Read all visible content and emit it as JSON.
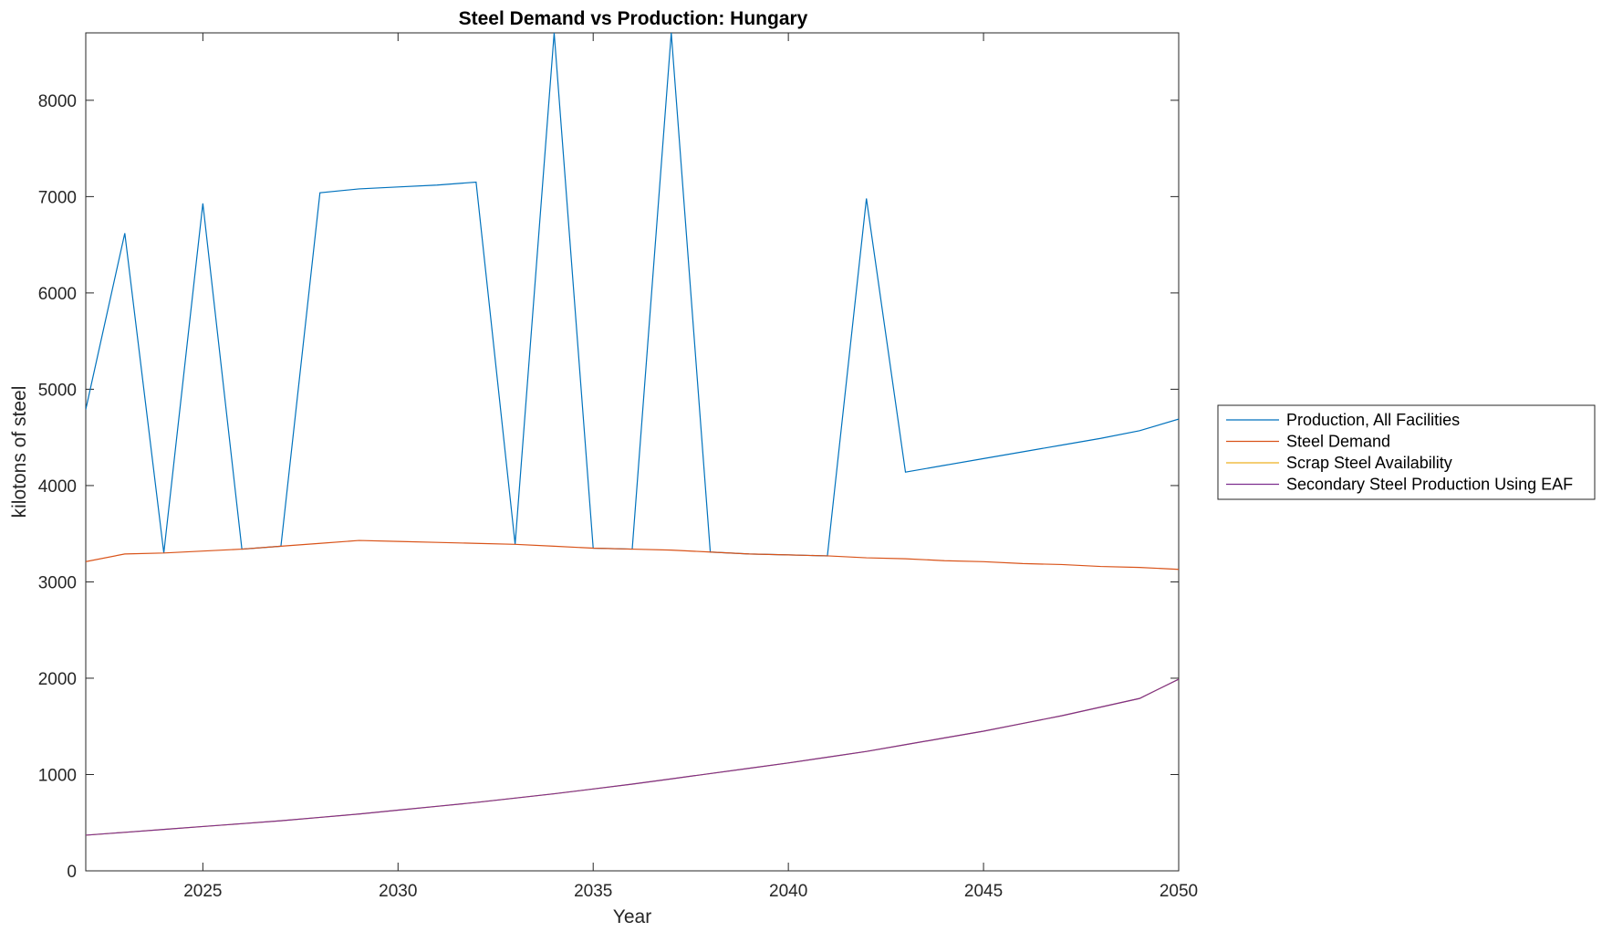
{
  "chart_data": {
    "type": "line",
    "title": "Steel Demand vs Production: Hungary",
    "xlabel": "Year",
    "ylabel": "kilotons of steel",
    "xlim": [
      2022,
      2050
    ],
    "ylim": [
      0,
      8700
    ],
    "xticks": [
      2025,
      2030,
      2035,
      2040,
      2045,
      2050
    ],
    "yticks": [
      0,
      1000,
      2000,
      3000,
      4000,
      5000,
      6000,
      7000,
      8000
    ],
    "grid": false,
    "legend_position": "outside-right",
    "x": [
      2022,
      2023,
      2024,
      2025,
      2026,
      2027,
      2028,
      2029,
      2030,
      2031,
      2032,
      2033,
      2034,
      2035,
      2036,
      2037,
      2038,
      2039,
      2040,
      2041,
      2042,
      2043,
      2044,
      2045,
      2046,
      2047,
      2048,
      2049,
      2050
    ],
    "series": [
      {
        "name": "Production, All Facilities",
        "color": "#0072BD",
        "values": [
          4790,
          6620,
          3300,
          6930,
          3340,
          3370,
          7040,
          7080,
          7100,
          7120,
          7150,
          3390,
          8700,
          3350,
          3340,
          8700,
          3310,
          3290,
          3280,
          3270,
          6980,
          4140,
          4210,
          4280,
          4350,
          4420,
          4490,
          4570,
          4690
        ]
      },
      {
        "name": "Steel Demand",
        "color": "#D95319",
        "values": [
          3210,
          3290,
          3300,
          3320,
          3340,
          3370,
          3400,
          3430,
          3420,
          3410,
          3400,
          3390,
          3370,
          3350,
          3340,
          3330,
          3310,
          3290,
          3280,
          3270,
          3250,
          3240,
          3220,
          3210,
          3190,
          3180,
          3160,
          3150,
          3130
        ]
      },
      {
        "name": "Scrap Steel Availability",
        "color": "#EDB120",
        "values": [
          370,
          400,
          430,
          460,
          490,
          520,
          555,
          590,
          630,
          670,
          710,
          755,
          800,
          850,
          900,
          955,
          1010,
          1065,
          1120,
          1180,
          1240,
          1310,
          1380,
          1450,
          1530,
          1610,
          1700,
          1790,
          1990
        ]
      },
      {
        "name": "Secondary Steel Production Using EAF",
        "color": "#7E2F8E",
        "values": [
          370,
          400,
          430,
          460,
          490,
          520,
          555,
          590,
          630,
          670,
          710,
          755,
          800,
          850,
          900,
          955,
          1010,
          1065,
          1120,
          1180,
          1240,
          1310,
          1380,
          1450,
          1530,
          1610,
          1700,
          1790,
          1990
        ]
      }
    ]
  }
}
